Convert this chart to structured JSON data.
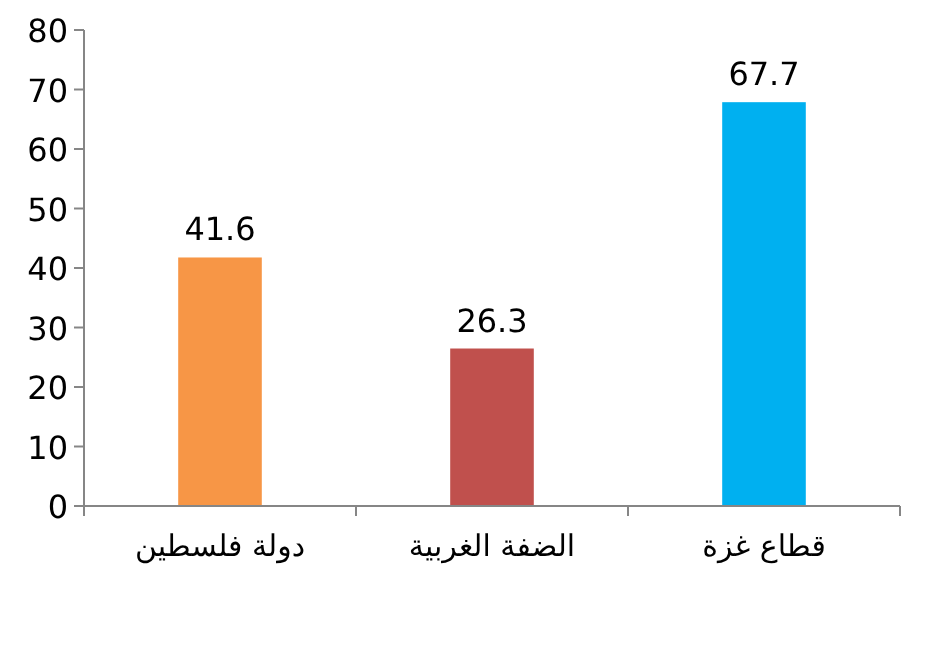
{
  "chart_data": {
    "type": "bar",
    "categories": [
      "دولة فلسطين",
      "الضفة الغربية",
      "قطاع غزة"
    ],
    "values": [
      41.6,
      26.3,
      67.7
    ],
    "colors": [
      "#f79646",
      "#c0504d",
      "#00b0f0"
    ],
    "ylim": [
      0,
      80
    ],
    "yticks": [
      0,
      10,
      20,
      30,
      40,
      50,
      60,
      70,
      80
    ],
    "grid": false,
    "data_labels": true
  }
}
